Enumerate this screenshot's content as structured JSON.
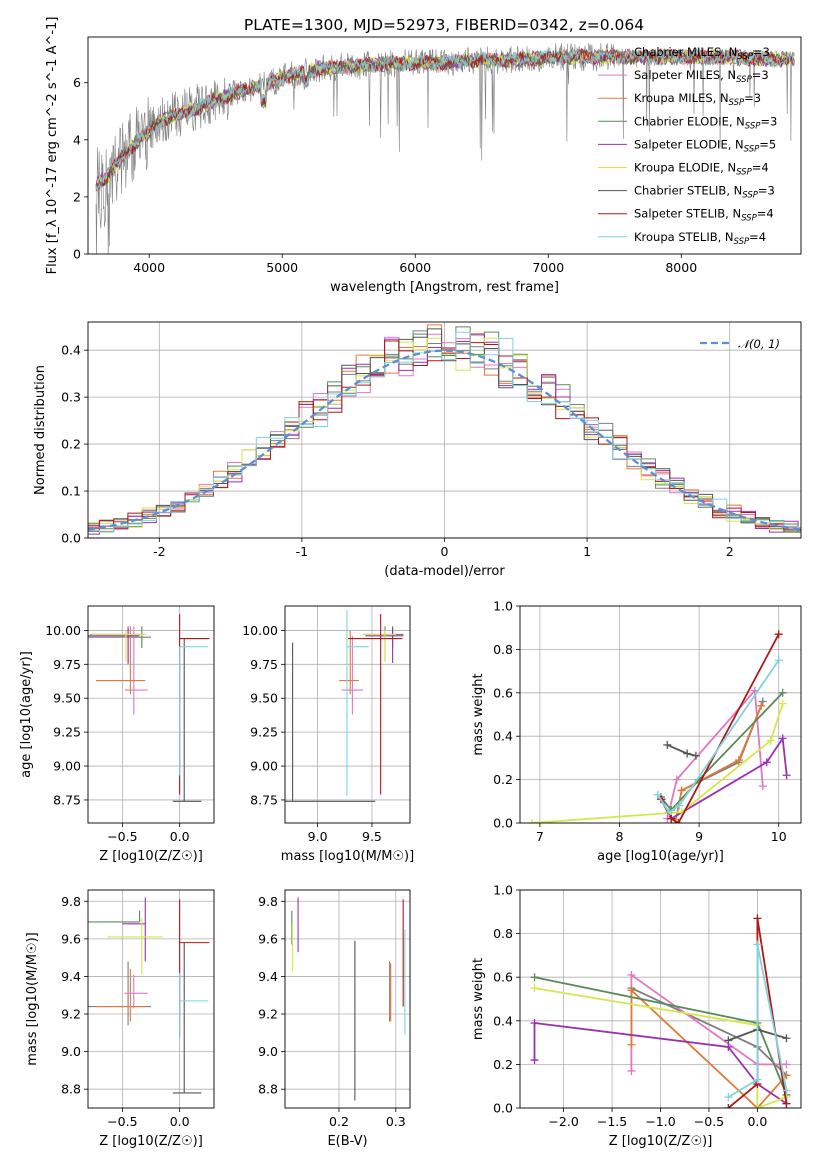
{
  "title": "PLATE=1300, MJD=52973, FIBERID=0342, z=0.064",
  "colors": {
    "Chabrier MILES": "#7f7f7f",
    "Salpeter MILES": "#e377c2",
    "Kroupa MILES": "#e07b39",
    "Chabrier ELODIE": "#5a8a5a",
    "Salpeter ELODIE": "#9b30b0",
    "Kroupa ELODIE": "#d4e84a",
    "Chabrier STELIB": "#555555",
    "Salpeter STELIB": "#b01818",
    "Kroupa STELIB": "#7fd4dc",
    "gauss": "#5b8fd8"
  },
  "legend": {
    "models": [
      {
        "imf": "Chabrier",
        "lib": "MILES",
        "nssp": "3"
      },
      {
        "imf": "Salpeter",
        "lib": "MILES",
        "nssp": "3"
      },
      {
        "imf": "Kroupa",
        "lib": "MILES",
        "nssp": "3"
      },
      {
        "imf": "Chabrier",
        "lib": "ELODIE",
        "nssp": "3"
      },
      {
        "imf": "Salpeter",
        "lib": "ELODIE",
        "nssp": "5"
      },
      {
        "imf": "Kroupa",
        "lib": "ELODIE",
        "nssp": "4"
      },
      {
        "imf": "Chabrier",
        "lib": "STELIB",
        "nssp": "3"
      },
      {
        "imf": "Salpeter",
        "lib": "STELIB",
        "nssp": "4"
      },
      {
        "imf": "Kroupa",
        "lib": "STELIB",
        "nssp": "4"
      }
    ],
    "gauss_label": "𝒩(0, 1)"
  },
  "chart_data": [
    {
      "id": "spectrum",
      "type": "line",
      "xlabel": "wavelength [Angstrom, rest frame]",
      "ylabel": "Flux [f_λ 10^-17 erg cm^-2 s^-1 A^-1]",
      "xlim": [
        3540,
        8900
      ],
      "ylim": [
        0,
        7.6
      ],
      "xticks": [
        4000,
        5000,
        6000,
        7000,
        8000
      ],
      "yticks": [
        0,
        2,
        4,
        6
      ],
      "data_range": [
        3600,
        8850
      ],
      "model_anchors": {
        "x": [
          3600,
          3700,
          3800,
          3900,
          4000,
          4100,
          4300,
          4500,
          4700,
          4900,
          5100,
          5300,
          5600,
          5900,
          6200,
          6500,
          6800,
          7100,
          7400,
          7700,
          8000,
          8300,
          8600,
          8850
        ],
        "y": [
          2.4,
          2.8,
          3.4,
          3.9,
          4.3,
          4.7,
          5.0,
          5.4,
          5.7,
          6.0,
          6.3,
          6.5,
          6.6,
          6.7,
          6.7,
          6.8,
          6.8,
          6.9,
          6.9,
          6.9,
          6.9,
          6.9,
          6.85,
          6.8
        ]
      }
    },
    {
      "id": "residuals",
      "type": "step",
      "xlabel": "(data-model)/error",
      "ylabel": "Normed distribution",
      "xlim": [
        -2.5,
        2.5
      ],
      "ylim": [
        0,
        0.46
      ],
      "xticks": [
        -2,
        -1,
        0,
        1,
        2
      ],
      "yticks": [
        0.0,
        0.1,
        0.2,
        0.3,
        0.4
      ],
      "bin_width": 0.1
    },
    {
      "id": "age_vs_Z",
      "type": "errorbar",
      "xlabel": "Z [log10(Z/Z☉)]",
      "ylabel": "age [log10(age/yr)]",
      "xlim": [
        -0.8,
        0.3
      ],
      "ylim": [
        8.58,
        10.18
      ],
      "xticks": [
        -0.5,
        0.0
      ],
      "xtick_labels": [
        "−0.5",
        "0.0"
      ],
      "yticks": [
        8.75,
        9.0,
        9.25,
        9.5,
        9.75,
        10.0
      ],
      "ytick_labels": [
        "8.75",
        "9.00",
        "9.25",
        "9.50",
        "9.75",
        "10.00"
      ],
      "points": [
        {
          "model": "Chabrier MILES",
          "x": -0.45,
          "xerr": [
            0.35,
            0.2
          ],
          "y": 9.95,
          "yerr": [
            0.2,
            0.08
          ]
        },
        {
          "model": "Salpeter MILES",
          "x": -0.4,
          "xerr": [
            0.08,
            0.12
          ],
          "y": 9.56,
          "yerr": [
            0.18,
            0.47
          ]
        },
        {
          "model": "Kroupa MILES",
          "x": -0.43,
          "xerr": [
            0.3,
            0.13
          ],
          "y": 9.63,
          "yerr": [
            0.1,
            0.4
          ]
        },
        {
          "model": "Chabrier ELODIE",
          "x": -0.33,
          "xerr": [
            0.45,
            0.0
          ],
          "y": 9.97,
          "yerr": [
            0.1,
            0.06
          ]
        },
        {
          "model": "Salpeter ELODIE",
          "x": -0.45,
          "xerr": [
            0.35,
            0.1
          ],
          "y": 9.96,
          "yerr": [
            0.2,
            0.06
          ]
        },
        {
          "model": "Kroupa ELODIE",
          "x": -0.47,
          "xerr": [
            0.3,
            0.18
          ],
          "y": 9.97,
          "yerr": [
            0.2,
            0.03
          ]
        },
        {
          "model": "Chabrier STELIB",
          "x": 0.04,
          "xerr": [
            0.1,
            0.15
          ],
          "y": 8.74,
          "yerr": [
            0.0,
            1.2
          ]
        },
        {
          "model": "Salpeter STELIB",
          "x": 0.0,
          "xerr": [
            0.0,
            0.26
          ],
          "y": 9.94,
          "yerr": [
            1.15,
            0.18
          ]
        },
        {
          "model": "Kroupa STELIB",
          "x": 0.0,
          "xerr": [
            0.0,
            0.25
          ],
          "y": 9.88,
          "yerr": [
            0.95,
            0.0
          ]
        }
      ]
    },
    {
      "id": "age_vs_mass",
      "type": "errorbar",
      "xlabel": "mass [log10(M/M☉)]",
      "ylabel": "",
      "xlim": [
        8.7,
        9.85
      ],
      "ylim": [
        8.58,
        10.18
      ],
      "xticks": [
        9.0,
        9.5
      ],
      "xtick_labels": [
        "9.0",
        "9.5"
      ],
      "yticks": [
        8.75,
        9.0,
        9.25,
        9.5,
        9.75,
        10.0
      ],
      "ytick_labels": [
        "8.75",
        "9.00",
        "9.25",
        "9.50",
        "9.75",
        "10.00"
      ],
      "points": [
        {
          "model": "Chabrier MILES",
          "x": 9.62,
          "xerr": [
            0.2,
            0.1
          ],
          "y": 9.97,
          "yerr": [
            0.2,
            0.06
          ]
        },
        {
          "model": "Salpeter MILES",
          "x": 9.32,
          "xerr": [
            0.1,
            0.1
          ],
          "y": 9.56,
          "yerr": [
            0.18,
            0.4
          ]
        },
        {
          "model": "Kroupa MILES",
          "x": 9.3,
          "xerr": [
            0.1,
            0.08
          ],
          "y": 9.63,
          "yerr": [
            0.1,
            0.37
          ]
        },
        {
          "model": "Chabrier ELODIE",
          "x": 9.69,
          "xerr": [
            0.0,
            0.1
          ],
          "y": 9.97,
          "yerr": [
            0.1,
            0.06
          ]
        },
        {
          "model": "Salpeter ELODIE",
          "x": 9.69,
          "xerr": [
            0.25,
            0.1
          ],
          "y": 9.96,
          "yerr": [
            0.2,
            0.06
          ]
        },
        {
          "model": "Kroupa ELODIE",
          "x": 9.62,
          "xerr": [
            0.2,
            0.1
          ],
          "y": 9.97,
          "yerr": [
            0.2,
            0.03
          ]
        },
        {
          "model": "Chabrier STELIB",
          "x": 8.77,
          "xerr": [
            0.07,
            0.76
          ],
          "y": 8.74,
          "yerr": [
            0.0,
            1.17
          ]
        },
        {
          "model": "Salpeter STELIB",
          "x": 9.58,
          "xerr": [
            0.3,
            0.2
          ],
          "y": 9.94,
          "yerr": [
            1.15,
            0.18
          ]
        },
        {
          "model": "Kroupa STELIB",
          "x": 9.27,
          "xerr": [
            0.0,
            0.2
          ],
          "y": 9.88,
          "yerr": [
            1.1,
            0.27
          ]
        }
      ]
    },
    {
      "id": "mass_vs_Z",
      "type": "errorbar",
      "xlabel": "Z [log10(Z/Z☉)]",
      "ylabel": "mass [log10(M/M☉)]",
      "xlim": [
        -0.8,
        0.3
      ],
      "ylim": [
        8.7,
        9.86
      ],
      "xticks": [
        -0.5,
        0.0
      ],
      "xtick_labels": [
        "−0.5",
        "0.0"
      ],
      "yticks": [
        8.8,
        9.0,
        9.2,
        9.4,
        9.6,
        9.8
      ],
      "ytick_labels": [
        "8.8",
        "9.0",
        "9.2",
        "9.4",
        "9.6",
        "9.8"
      ],
      "points": [
        {
          "model": "Chabrier MILES",
          "x": -0.45,
          "xerr": [
            0.35,
            0.2
          ],
          "y": 9.24,
          "yerr": [
            0.1,
            0.24
          ]
        },
        {
          "model": "Salpeter MILES",
          "x": -0.4,
          "xerr": [
            0.08,
            0.12
          ],
          "y": 9.31,
          "yerr": [
            0.08,
            0.1
          ]
        },
        {
          "model": "Kroupa MILES",
          "x": -0.43,
          "xerr": [
            0.3,
            0.13
          ],
          "y": 9.24,
          "yerr": [
            0.08,
            0.2
          ]
        },
        {
          "model": "Chabrier ELODIE",
          "x": -0.35,
          "xerr": [
            0.45,
            0.0
          ],
          "y": 9.69,
          "yerr": [
            0.0,
            0.06
          ]
        },
        {
          "model": "Salpeter ELODIE",
          "x": -0.3,
          "xerr": [
            0.2,
            0.0
          ],
          "y": 9.68,
          "yerr": [
            0.2,
            0.14
          ]
        },
        {
          "model": "Kroupa ELODIE",
          "x": -0.33,
          "xerr": [
            0.3,
            0.18
          ],
          "y": 9.61,
          "yerr": [
            0.2,
            0.1
          ]
        },
        {
          "model": "Chabrier STELIB",
          "x": 0.04,
          "xerr": [
            0.1,
            0.15
          ],
          "y": 8.78,
          "yerr": [
            0.0,
            0.8
          ]
        },
        {
          "model": "Salpeter STELIB",
          "x": 0.0,
          "xerr": [
            0.0,
            0.26
          ],
          "y": 9.58,
          "yerr": [
            0.5,
            0.23
          ]
        },
        {
          "model": "Kroupa STELIB",
          "x": 0.0,
          "xerr": [
            0.0,
            0.25
          ],
          "y": 9.27,
          "yerr": [
            0.2,
            0.15
          ]
        }
      ]
    },
    {
      "id": "mass_vs_EBV",
      "type": "errorbar",
      "xlabel": "E(B-V)",
      "ylabel": "",
      "xlim": [
        0.105,
        0.325
      ],
      "ylim": [
        8.7,
        9.86
      ],
      "xticks": [
        0.2,
        0.3
      ],
      "xtick_labels": [
        "0.2",
        "0.3"
      ],
      "yticks": [
        8.8,
        9.0,
        9.2,
        9.4,
        9.6,
        9.8
      ],
      "ytick_labels": [
        "8.8",
        "9.0",
        "9.2",
        "9.4",
        "9.6",
        "9.8"
      ],
      "points": [
        {
          "model": "Chabrier MILES",
          "x": 0.289,
          "xerr": [
            0,
            0
          ],
          "y": 9.3,
          "yerr": [
            0.14,
            0.18
          ]
        },
        {
          "model": "Salpeter MILES",
          "x": 0.29,
          "xerr": [
            0,
            0
          ],
          "y": 9.3,
          "yerr": [
            0.12,
            0.17
          ]
        },
        {
          "model": "Kroupa MILES",
          "x": 0.291,
          "xerr": [
            0,
            0
          ],
          "y": 9.31,
          "yerr": [
            0.15,
            0.16
          ]
        },
        {
          "model": "Chabrier ELODIE",
          "x": 0.117,
          "xerr": [
            0,
            0
          ],
          "y": 9.62,
          "yerr": [
            0.05,
            0.13
          ]
        },
        {
          "model": "Salpeter ELODIE",
          "x": 0.128,
          "xerr": [
            0,
            0
          ],
          "y": 9.67,
          "yerr": [
            0.14,
            0.15
          ]
        },
        {
          "model": "Kroupa ELODIE",
          "x": 0.118,
          "xerr": [
            0,
            0
          ],
          "y": 9.58,
          "yerr": [
            0.15,
            0.1
          ]
        },
        {
          "model": "Chabrier STELIB",
          "x": 0.228,
          "xerr": [
            0,
            0
          ],
          "y": 9.16,
          "yerr": [
            0.42,
            0.43
          ]
        },
        {
          "model": "Salpeter STELIB",
          "x": 0.313,
          "xerr": [
            0,
            0
          ],
          "y": 9.52,
          "yerr": [
            0.28,
            0.29
          ]
        },
        {
          "model": "Kroupa STELIB",
          "x": 0.316,
          "xerr": [
            0,
            0
          ],
          "y": 9.38,
          "yerr": [
            0.29,
            0.27
          ]
        }
      ]
    },
    {
      "id": "weight_vs_age",
      "type": "line",
      "xlabel": "age [log10(age/yr)]",
      "ylabel": "mass weight",
      "xlim": [
        6.75,
        10.28
      ],
      "ylim": [
        0,
        1
      ],
      "xticks": [
        7,
        8,
        9,
        10
      ],
      "yticks": [
        0.0,
        0.2,
        0.4,
        0.6,
        0.8,
        1.0
      ],
      "series": [
        {
          "model": "Chabrier MILES",
          "x": [
            8.78,
            9.5,
            9.8
          ],
          "y": [
            0.15,
            0.28,
            0.56
          ]
        },
        {
          "model": "Salpeter MILES",
          "x": [
            8.6,
            8.72,
            9.7,
            9.8
          ],
          "y": [
            0.02,
            0.2,
            0.61,
            0.17
          ]
        },
        {
          "model": "Kroupa MILES",
          "x": [
            8.7,
            8.78,
            9.5,
            9.78
          ],
          "y": [
            0.0,
            0.15,
            0.29,
            0.54
          ]
        },
        {
          "model": "Chabrier ELODIE",
          "x": [
            8.52,
            8.65,
            9.0,
            10.05
          ],
          "y": [
            0.12,
            0.06,
            0.2,
            0.6
          ]
        },
        {
          "model": "Salpeter ELODIE",
          "x": [
            8.53,
            8.65,
            9.85,
            10.05,
            10.1
          ],
          "y": [
            0.11,
            0.02,
            0.28,
            0.39,
            0.22
          ]
        },
        {
          "model": "Kroupa ELODIE",
          "x": [
            6.9,
            8.78,
            9.9,
            10.05
          ],
          "y": [
            0.0,
            0.05,
            0.38,
            0.55
          ]
        },
        {
          "model": "Chabrier STELIB",
          "x": [
            8.6,
            8.85,
            8.96
          ],
          "y": [
            0.36,
            0.32,
            0.31
          ]
        },
        {
          "model": "Salpeter STELIB",
          "x": [
            8.52,
            8.65,
            8.74,
            10.0
          ],
          "y": [
            0.11,
            0.02,
            0.0,
            0.87
          ]
        },
        {
          "model": "Kroupa STELIB",
          "x": [
            8.48,
            8.62,
            8.75,
            10.0
          ],
          "y": [
            0.13,
            0.05,
            0.08,
            0.75
          ]
        }
      ]
    },
    {
      "id": "weight_vs_Z",
      "type": "line",
      "xlabel": "Z [log10(Z/Z☉)]",
      "ylabel": "mass weight",
      "xlim": [
        -2.45,
        0.45
      ],
      "ylim": [
        0,
        1
      ],
      "xticks": [
        -2.0,
        -1.5,
        -1.0,
        -0.5,
        0.0
      ],
      "xtick_labels": [
        "−2.0",
        "−1.5",
        "−1.0",
        "−0.5",
        "0.0"
      ],
      "yticks": [
        0.0,
        0.2,
        0.4,
        0.6,
        0.8,
        1.0
      ],
      "series": [
        {
          "model": "Chabrier MILES",
          "x": [
            -1.3,
            0.0,
            0.3
          ],
          "y": [
            0.55,
            0.28,
            0.15
          ]
        },
        {
          "model": "Salpeter MILES",
          "x": [
            -1.3,
            -1.3,
            0.0,
            0.3
          ],
          "y": [
            0.17,
            0.61,
            0.2,
            0.2
          ]
        },
        {
          "model": "Kroupa MILES",
          "x": [
            -1.3,
            -1.3,
            0.0,
            0.3
          ],
          "y": [
            0.29,
            0.54,
            0.0,
            0.15
          ]
        },
        {
          "model": "Chabrier ELODIE",
          "x": [
            -2.3,
            0.0,
            0.3
          ],
          "y": [
            0.6,
            0.39,
            0.06
          ]
        },
        {
          "model": "Salpeter ELODIE",
          "x": [
            -2.3,
            -2.3,
            -0.3,
            0.0,
            0.3
          ],
          "y": [
            0.22,
            0.39,
            0.28,
            0.11,
            0.02
          ]
        },
        {
          "model": "Kroupa ELODIE",
          "x": [
            -2.3,
            0.0,
            0.0,
            0.3
          ],
          "y": [
            0.55,
            0.38,
            0.0,
            0.05
          ]
        },
        {
          "model": "Chabrier STELIB",
          "x": [
            -0.3,
            0.0,
            0.3
          ],
          "y": [
            0.31,
            0.36,
            0.32
          ]
        },
        {
          "model": "Salpeter STELIB",
          "x": [
            -0.3,
            0.0,
            0.0,
            0.3
          ],
          "y": [
            0.0,
            0.11,
            0.87,
            0.02
          ]
        },
        {
          "model": "Kroupa STELIB",
          "x": [
            -0.3,
            0.0,
            0.0,
            0.3
          ],
          "y": [
            0.05,
            0.13,
            0.75,
            0.08
          ]
        }
      ]
    }
  ]
}
